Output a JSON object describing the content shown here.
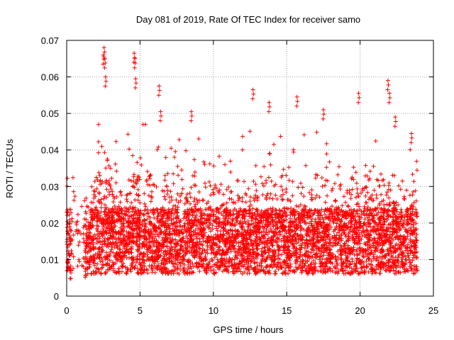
{
  "chart_data": {
    "type": "scatter",
    "title": "Day 081 of 2019, Rate Of TEC Index for receiver samo",
    "xlabel": "GPS time / hours",
    "ylabel": "ROTI / TECUs",
    "xlim": [
      0,
      25
    ],
    "ylim": [
      0,
      0.07
    ],
    "xticks": [
      0,
      5,
      10,
      15,
      20,
      25
    ],
    "yticks": [
      0,
      0.01,
      0.02,
      0.03,
      0.04,
      0.05,
      0.06,
      0.07
    ],
    "xtick_labels": [
      "0",
      "5",
      "10",
      "15",
      "20",
      "25"
    ],
    "ytick_labels": [
      "0",
      "0.01",
      "0.02",
      "0.03",
      "0.04",
      "0.05",
      "0.06",
      "0.07"
    ],
    "grid": true,
    "marker": "+",
    "series": [
      {
        "name": "ROTI",
        "color": "#ff0000",
        "x_range_hours": [
          0.0,
          23.9
        ],
        "gap_hours": [
          0.3,
          1.2
        ],
        "typical_range": [
          0.005,
          0.025
        ],
        "notable_points": [
          {
            "x": 2.55,
            "y": 0.068
          },
          {
            "x": 2.5,
            "y": 0.066
          },
          {
            "x": 2.6,
            "y": 0.065
          },
          {
            "x": 2.65,
            "y": 0.06
          },
          {
            "x": 4.6,
            "y": 0.0665
          },
          {
            "x": 4.65,
            "y": 0.065
          },
          {
            "x": 4.7,
            "y": 0.0595
          },
          {
            "x": 6.3,
            "y": 0.0575
          },
          {
            "x": 6.4,
            "y": 0.0505
          },
          {
            "x": 8.5,
            "y": 0.0505
          },
          {
            "x": 12.7,
            "y": 0.0565
          },
          {
            "x": 13.8,
            "y": 0.053
          },
          {
            "x": 15.7,
            "y": 0.0545
          },
          {
            "x": 17.5,
            "y": 0.051
          },
          {
            "x": 19.9,
            "y": 0.0555
          },
          {
            "x": 21.9,
            "y": 0.059
          },
          {
            "x": 22.0,
            "y": 0.0555
          },
          {
            "x": 22.4,
            "y": 0.049
          },
          {
            "x": 23.5,
            "y": 0.0445
          }
        ]
      }
    ]
  }
}
